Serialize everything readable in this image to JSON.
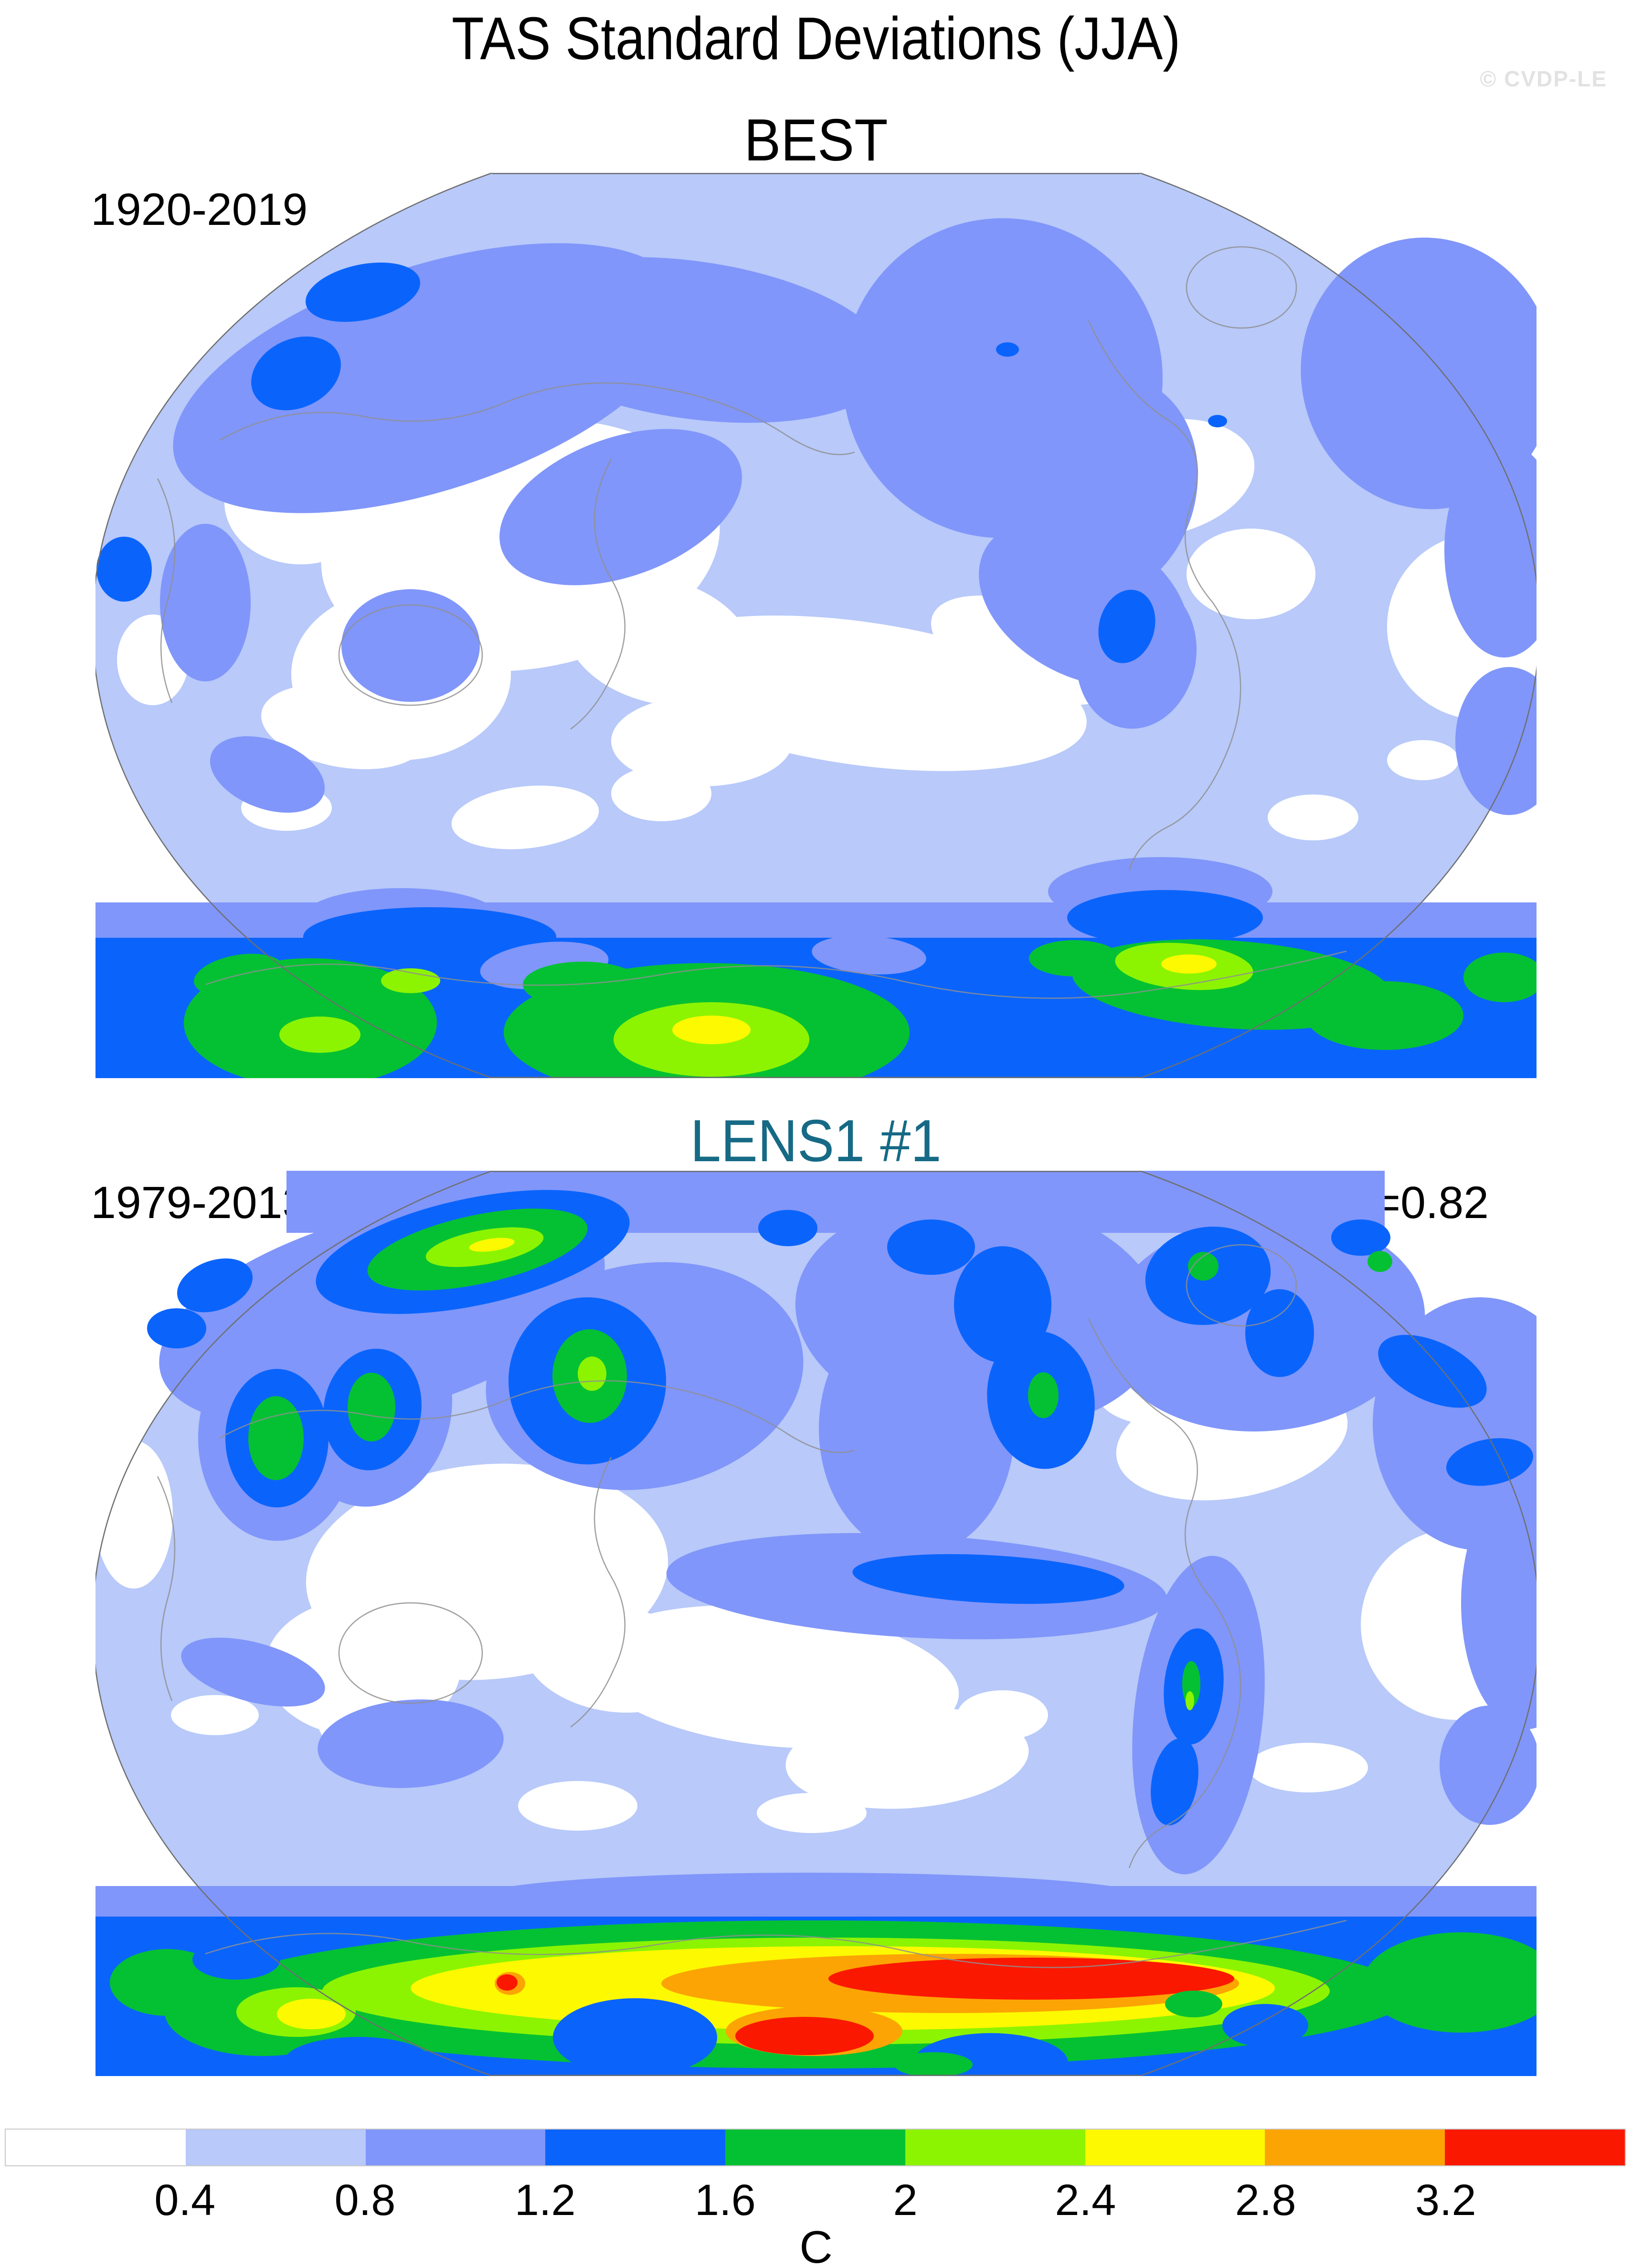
{
  "header": {
    "title": "TAS Standard Deviations (JJA)",
    "watermark": "© CVDP-LE"
  },
  "panels": [
    {
      "id": "best",
      "title": "BEST",
      "title_color": "#000000",
      "period": "1920-2019",
      "corr": ""
    },
    {
      "id": "lens1",
      "title": "LENS1 #1",
      "title_color": "#166a85",
      "period": "1979-2013",
      "corr": "r=0.82"
    }
  ],
  "colorbar": {
    "unit": "C",
    "tick_labels": [
      "0.4",
      "0.8",
      "1.2",
      "1.6",
      "2",
      "2.4",
      "2.8",
      "3.2"
    ],
    "colors": [
      "#ffffff",
      "#b8c9fa",
      "#8096fa",
      "#0a64fc",
      "#04c133",
      "#8cf400",
      "#fdf900",
      "#fca404",
      "#fb1800"
    ]
  },
  "chart_data": {
    "type": "heatmap",
    "subtype": "filled-contour global maps (Winkel/Robinson-style outline, Pacific-centered)",
    "title": "TAS Standard Deviations (JJA)",
    "units": "C",
    "contour_levels": [
      0.4,
      0.8,
      1.2,
      1.6,
      2.0,
      2.4,
      2.8,
      3.2
    ],
    "palette": [
      "#ffffff",
      "#b8c9fa",
      "#8096fa",
      "#0a64fc",
      "#04c133",
      "#8cf400",
      "#fdf900",
      "#fca404",
      "#fb1800"
    ],
    "legend_position": "bottom horizontal label bar",
    "watermark": "© CVDP-LE",
    "panels": [
      {
        "name": "BEST",
        "period": "1920-2019",
        "regional_values_degC": {
          "tropical_oceans_and_east_asia": "<0.4",
          "midlatitude_oceans_background": "0.4-0.8",
          "arctic_siberia_alaska_canada_band": "0.8-1.2",
          "iceland_greenland_sea_maxima": "1.2-1.6",
          "east_equatorial_pacific": "0.8-1.2",
          "peru_coast_spot": "1.2-1.6",
          "australia_interior": "0.8-1.2",
          "antarctic_coastal_band": "1.2-1.6",
          "antarctic_interior_blobs": "1.6-2.4",
          "antarctic_local_maxima": "2.4-2.8"
        }
      },
      {
        "name": "LENS1 #1",
        "period": "1979-2013",
        "correlation_with_obs": 0.82,
        "regional_values_degC": {
          "tropical_oceans": "<0.4-0.8",
          "ne_siberia_streak_maxima": "2.0-2.8",
          "sea_of_okhotsk_kamchatka": "1.6-2.4",
          "arabian_peninsula": "1.6-2.0",
          "india": "1.6-2.0",
          "north_america_interior_patches": "1.2-2.0",
          "greenland_region": "1.2-1.6",
          "east_equatorial_pacific_tongue": "1.2-1.6",
          "patagonia_south_america": "1.2-2.4",
          "antarctic_band": "1.6-3.2",
          "antarctic_maxima_red": ">3.2"
        }
      }
    ]
  }
}
